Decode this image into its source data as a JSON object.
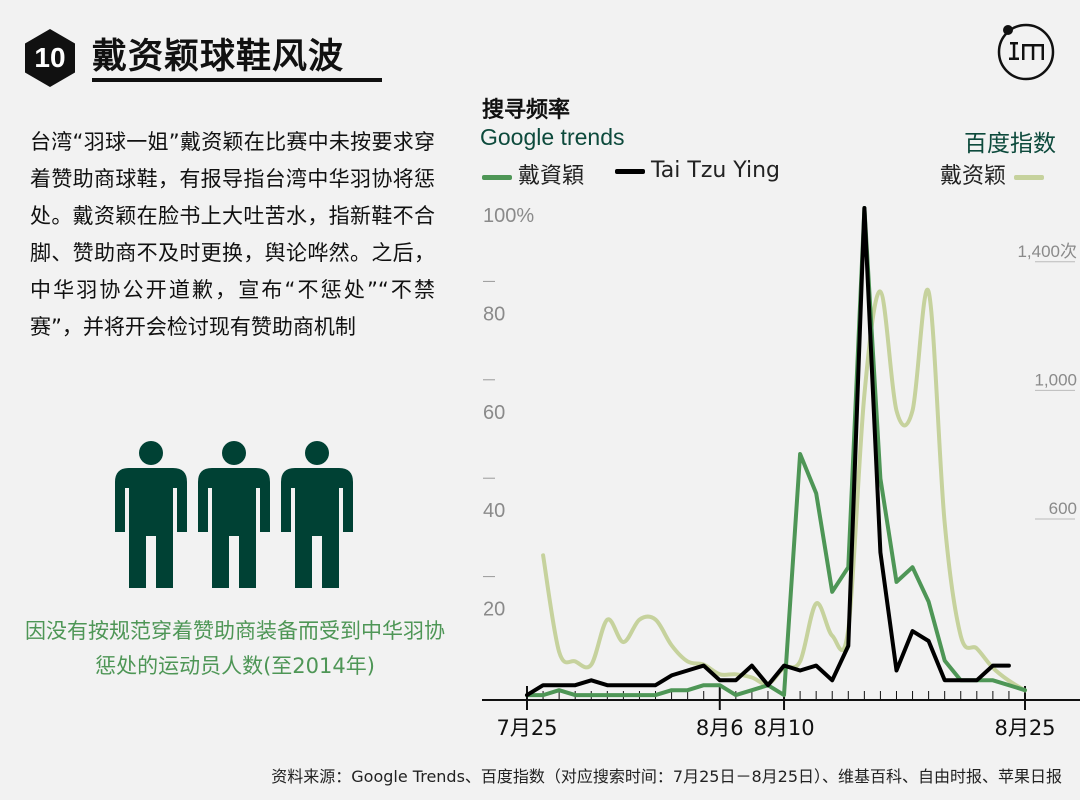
{
  "header": {
    "number": "10",
    "title": "戴资颖球鞋风波"
  },
  "body_text": "台湾“羽球一姐”戴资颖在比赛中未按要求穿着赞助商球鞋，有报导指台湾中华羽协将惩处。戴资颖在脸书上大吐苦水，指新鞋不合脚、赞助商不及时更换，舆论哗然。之后，中华羽协公开道歉，宣布“不惩处”“不禁赛”，并将开会检讨现有赞助商机制",
  "people_caption": "因没有按规范穿着赞助商装备而受到中华羽协惩处的运动员人数(至2014年)",
  "people_count": 3,
  "colors": {
    "dark_green": "#004134",
    "mid_green": "#4e9656",
    "light_green": "#c6d29d",
    "black": "#000000"
  },
  "chart_data": {
    "type": "line",
    "title": "搜寻频率",
    "left_group_label": "Google trends",
    "right_group_label": "百度指数",
    "legend": [
      "戴資穎",
      "Tai Tzu Ying",
      "戴资颖"
    ],
    "x_ticks": [
      {
        "day": 0,
        "label": "7月25"
      },
      {
        "day": 12,
        "label": "8月6"
      },
      {
        "day": 16,
        "label": "8月10"
      },
      {
        "day": 31,
        "label": "8月25"
      }
    ],
    "left_axis": {
      "ylim": [
        0,
        100
      ],
      "ticks": [
        20,
        40,
        60,
        80,
        100
      ],
      "tick_labels": [
        "20",
        "40",
        "60",
        "80",
        "100%"
      ]
    },
    "right_axis": {
      "ylim": [
        0,
        1530
      ],
      "ticks": [
        600,
        1000,
        1400
      ],
      "tick_labels": [
        "600",
        "1,000",
        "1,400次"
      ]
    },
    "series": [
      {
        "name": "戴資穎",
        "axis": "left",
        "color": "#4e9656",
        "x": [
          0,
          1,
          2,
          3,
          4,
          5,
          6,
          7,
          8,
          9,
          10,
          11,
          12,
          13,
          14,
          15,
          16,
          17,
          18,
          19,
          20,
          21,
          22,
          23,
          24,
          25,
          26,
          27,
          28,
          29,
          30,
          31
        ],
        "y": [
          1,
          1,
          2,
          1,
          1,
          1,
          1,
          1,
          1,
          2,
          2,
          3,
          3,
          1,
          2,
          3,
          1,
          50,
          42,
          22,
          27,
          100,
          45,
          24,
          27,
          20,
          8,
          4,
          4,
          4,
          3,
          2
        ]
      },
      {
        "name": "Tai Tzu Ying",
        "axis": "left",
        "color": "#000000",
        "x": [
          0,
          1,
          2,
          3,
          4,
          5,
          6,
          7,
          8,
          9,
          10,
          11,
          12,
          13,
          14,
          15,
          16,
          17,
          18,
          19,
          20,
          21,
          22,
          23,
          24,
          25,
          26,
          27,
          28,
          29,
          30
        ],
        "y": [
          1,
          3,
          3,
          3,
          4,
          3,
          3,
          3,
          3,
          5,
          6,
          7,
          4,
          4,
          7,
          3,
          7,
          6,
          7,
          4,
          11,
          100,
          30,
          6,
          14,
          12,
          4,
          4,
          4,
          7,
          7
        ]
      },
      {
        "name": "戴资颖",
        "axis": "right",
        "color": "#c6d29d",
        "x": [
          1,
          2,
          3,
          4,
          5,
          6,
          7,
          8,
          9,
          10,
          11,
          12,
          13,
          14,
          15,
          16,
          17,
          18,
          19,
          20,
          21,
          22,
          23,
          24,
          25,
          26,
          27,
          28,
          29,
          30,
          31
        ],
        "y": [
          450,
          150,
          120,
          110,
          250,
          180,
          250,
          250,
          170,
          120,
          110,
          80,
          80,
          70,
          50,
          100,
          120,
          300,
          200,
          220,
          950,
          1270,
          900,
          900,
          1270,
          550,
          200,
          160,
          100,
          60,
          30
        ]
      }
    ]
  },
  "source": "资料来源：Google Trends、百度指数（对应搜索时间：7月25日－8月25日）、维基百科、自由时报、苹果日报"
}
